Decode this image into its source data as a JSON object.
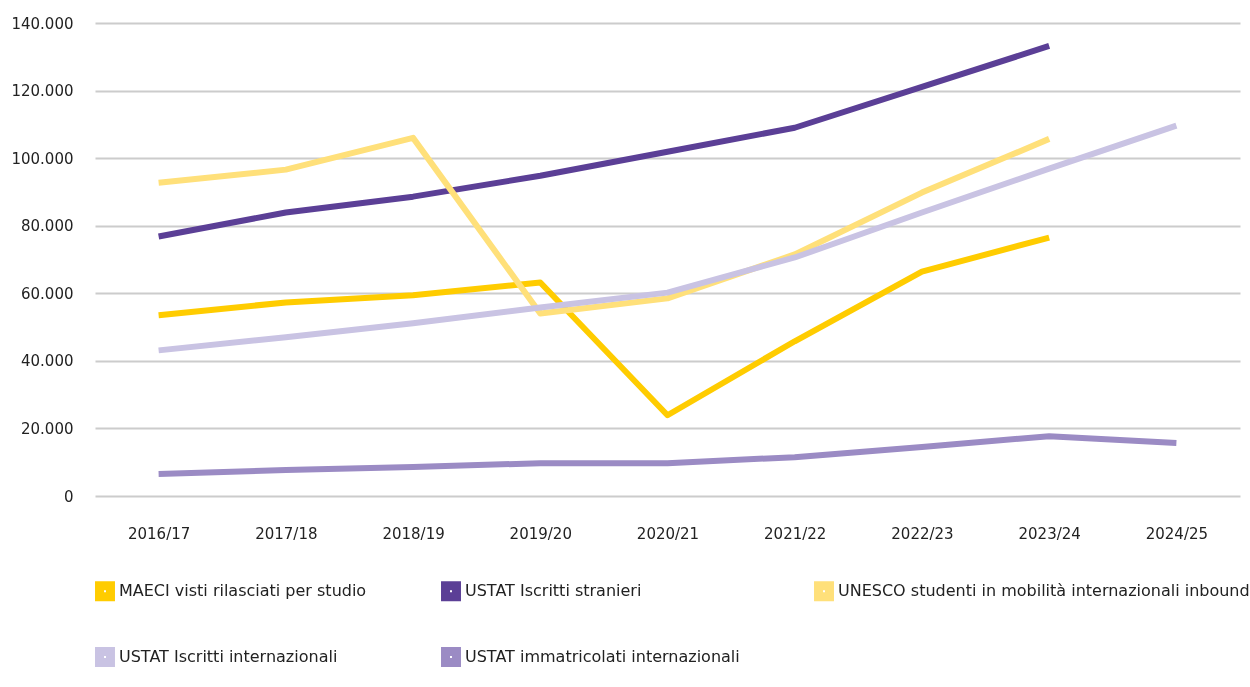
{
  "chart_data": {
    "type": "line",
    "categories": [
      "2016/17",
      "2017/18",
      "2018/19",
      "2019/20",
      "2020/21",
      "2021/22",
      "2022/23",
      "2023/24",
      "2024/25"
    ],
    "series": [
      {
        "name": "MAECI visti rilasciati per studio",
        "color": "#ffcc00",
        "values": [
          53500,
          57300,
          59400,
          63200,
          23900,
          45800,
          66400,
          76500,
          null
        ]
      },
      {
        "name": "USTAT Iscritti stranieri",
        "color": "#5b3f96",
        "values": [
          76800,
          83900,
          88600,
          94800,
          101900,
          109000,
          121100,
          133200,
          null
        ]
      },
      {
        "name": "UNESCO studenti in mobilità internazionali inbound",
        "color": "#ffe07a",
        "values": [
          92700,
          96600,
          106000,
          54000,
          58500,
          71500,
          89800,
          105700,
          null
        ]
      },
      {
        "name": "USTAT Iscritti internazionali",
        "color": "#c9c3e3",
        "values": [
          43100,
          47000,
          51100,
          55800,
          60200,
          70600,
          83900,
          96900,
          109600
        ]
      },
      {
        "name": "USTAT immatricolati internazionali",
        "color": "#9b8bc4",
        "values": [
          6500,
          7700,
          8600,
          9700,
          9700,
          11500,
          14500,
          17700,
          15700
        ]
      }
    ],
    "ylim": [
      0,
      140000
    ],
    "yticks": [
      {
        "value": 0,
        "label": "0"
      },
      {
        "value": 20000,
        "label": "20.000"
      },
      {
        "value": 40000,
        "label": "40.000"
      },
      {
        "value": 60000,
        "label": "60.000"
      },
      {
        "value": 80000,
        "label": "80.000"
      },
      {
        "value": 100000,
        "label": "100.000"
      },
      {
        "value": 120000,
        "label": "120.000"
      },
      {
        "value": 140000,
        "label": "140.000"
      }
    ],
    "grid": "y",
    "legend": "bottom",
    "marker": "none",
    "line_style": "solid"
  }
}
